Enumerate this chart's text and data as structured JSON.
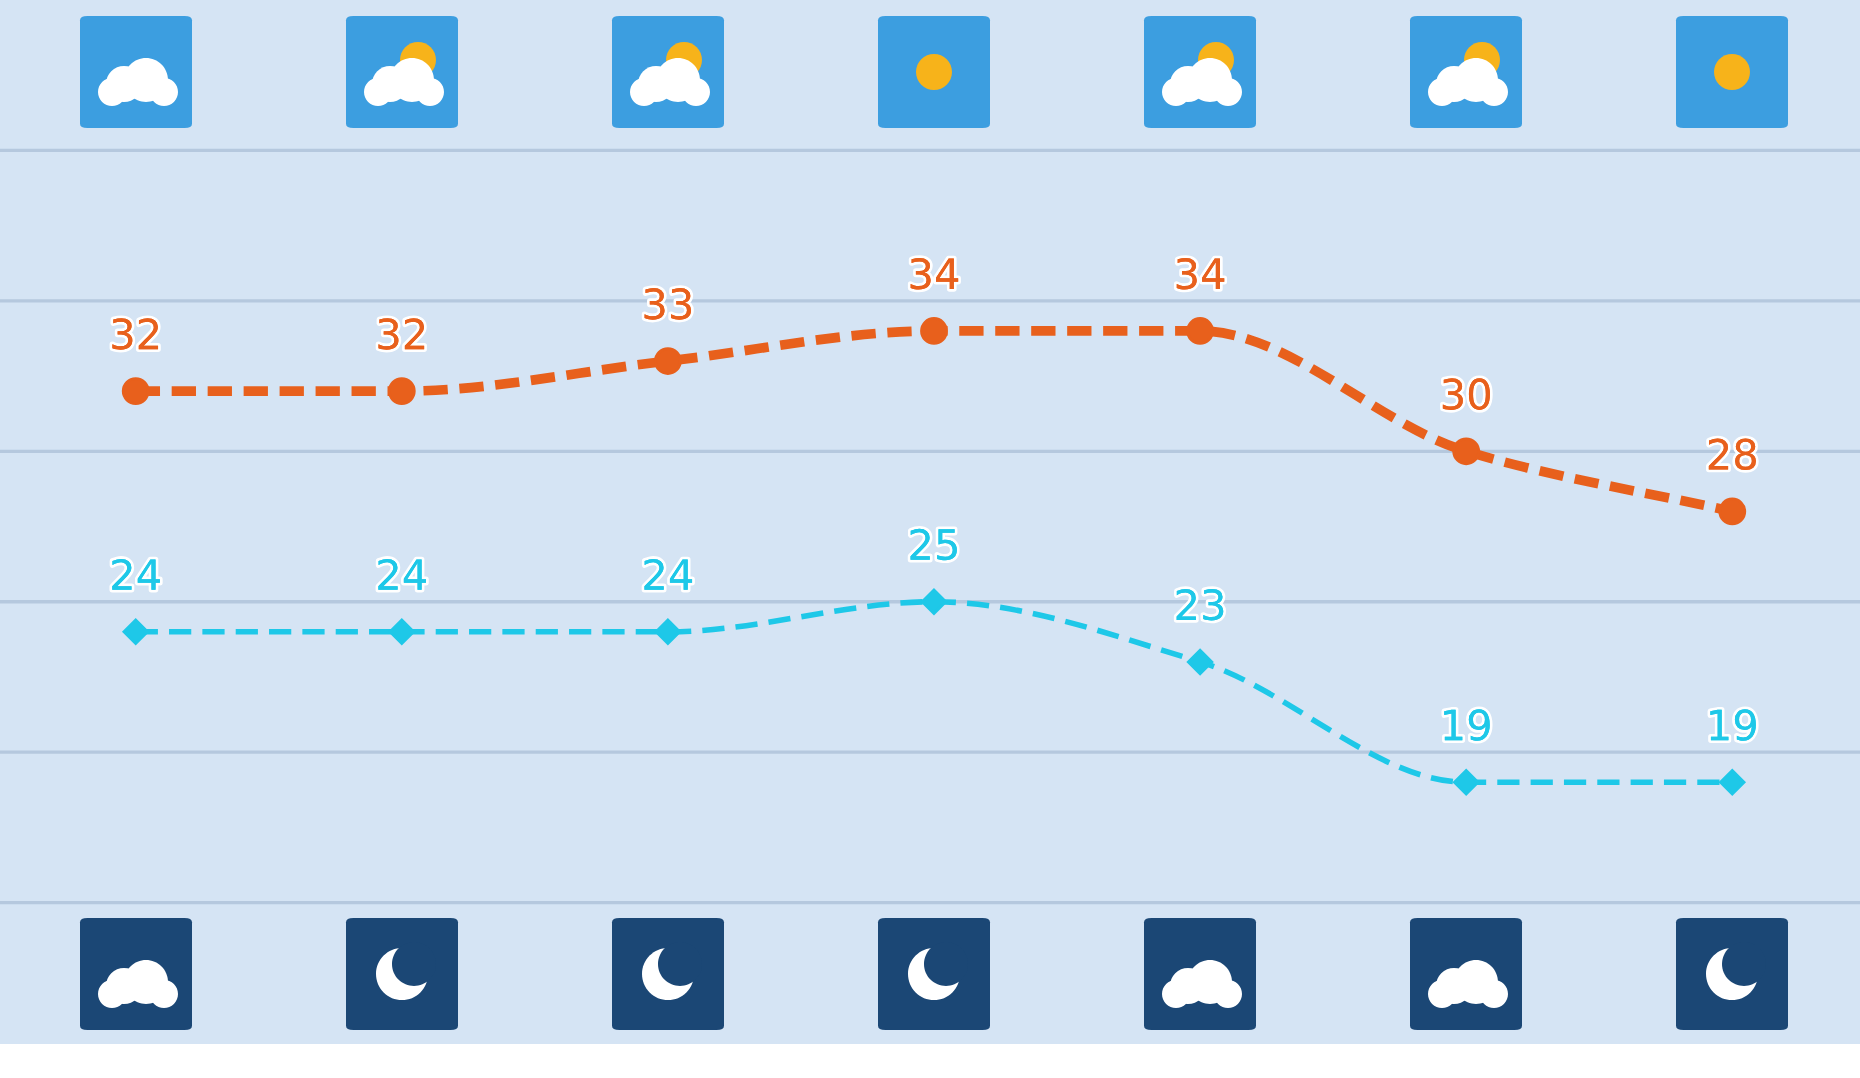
{
  "chart_data": {
    "type": "line",
    "categories": [
      null,
      null,
      null,
      null,
      null,
      null,
      null
    ],
    "series": [
      {
        "color": "#e8601c",
        "values": [
          32,
          32,
          33,
          34,
          34,
          30,
          28
        ],
        "marker": "circle",
        "line_style": "dotted"
      },
      {
        "color": "#1ec8e8",
        "values": [
          24,
          24,
          24,
          25,
          23,
          19,
          19
        ],
        "marker": "diamond",
        "line_style": "dashed"
      }
    ],
    "data_labels": true,
    "ylim": [
      10.3,
      45
    ],
    "yticks": [
      {
        "value": 15,
        "label": null
      },
      {
        "value": 20,
        "label": null
      },
      {
        "value": 25,
        "label": null
      },
      {
        "value": 30,
        "label": null
      },
      {
        "value": 35,
        "label": null
      },
      {
        "value": 40,
        "label": null
      }
    ],
    "grid": "y"
  }
}
